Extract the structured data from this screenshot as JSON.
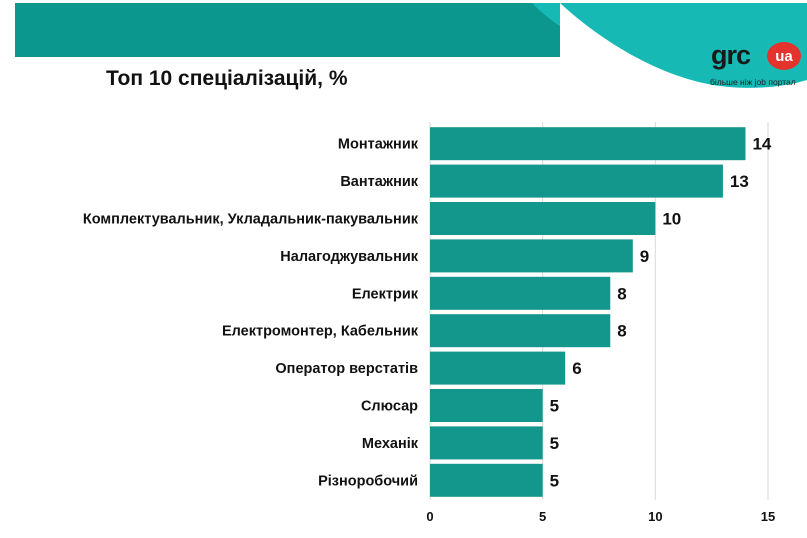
{
  "theme": {
    "bar_color": "#13978C",
    "banner_color": "#0B978D",
    "wave_light": "#16B9B4",
    "wave_white": "#FFFFFF",
    "brand_red": "#E4322D"
  },
  "logo": {
    "word": "grc",
    "badge": "ua",
    "tagline": "більше ніж job портал"
  },
  "chart_data": {
    "type": "bar",
    "orientation": "horizontal",
    "title": "Топ 10 спеціалізацій, %",
    "categories": [
      "Монтажник",
      "Вантажник",
      "Комплектувальник, Укладальник-пакувальник",
      "Налагоджувальник",
      "Електрик",
      "Електромонтер, Кабельник",
      "Оператор верстатів",
      "Слюсар",
      "Механік",
      "Різноробочий"
    ],
    "values": [
      14,
      13,
      10,
      9,
      8,
      8,
      6,
      5,
      5,
      5
    ],
    "xlim": [
      0,
      15
    ],
    "xticks": [
      0,
      5,
      10,
      15
    ],
    "grid": true,
    "xlabel": "",
    "ylabel": ""
  }
}
